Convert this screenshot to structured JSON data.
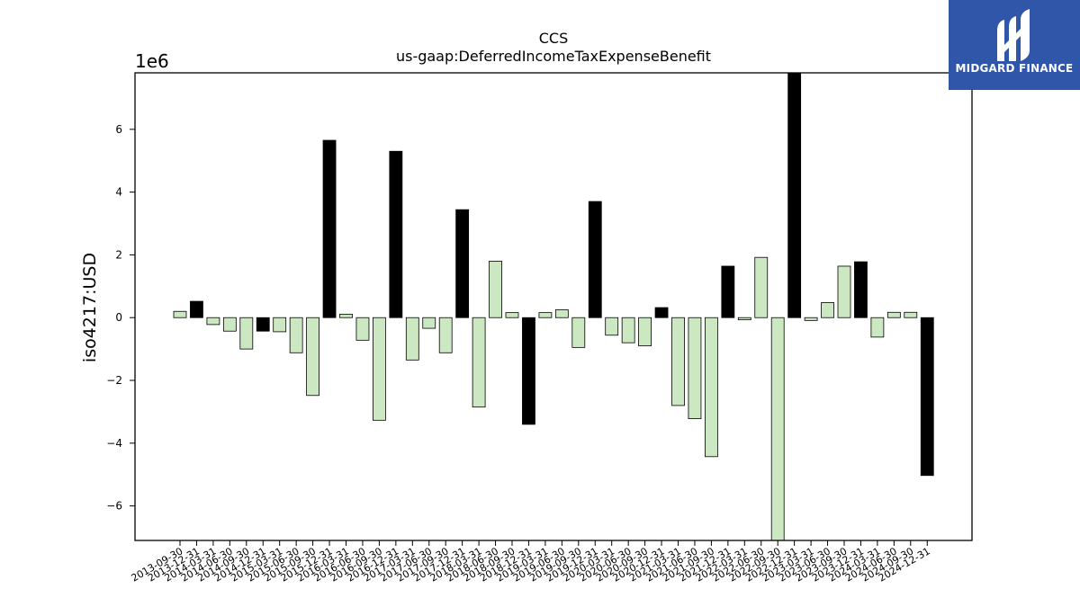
{
  "brand": {
    "name": "MIDGARD FINANCE",
    "logo_icon": "stylized-m-icon",
    "background": "#2f56a8"
  },
  "chart_data": {
    "type": "bar",
    "title": "CCS",
    "subtitle": "us-gaap:DeferredIncomeTaxExpenseBenefit",
    "ylabel": "iso4217:USD",
    "y_scale_label": "1e6",
    "ylim": [
      -7100000,
      7800000
    ],
    "yticks": [
      -6000000,
      -4000000,
      -2000000,
      0,
      2000000,
      4000000,
      6000000
    ],
    "ytick_labels": [
      "−6",
      "−4",
      "−2",
      "0",
      "2",
      "4",
      "6"
    ],
    "colors": {
      "quarter": "#cce8c2",
      "annual": "#000000",
      "edge": "#000000"
    },
    "categories": [
      "2013-09-30",
      "2013-12-31",
      "2014-03-31",
      "2014-06-30",
      "2014-09-30",
      "2014-12-31",
      "2015-03-31",
      "2015-06-30",
      "2015-09-30",
      "2015-12-31",
      "2016-03-31",
      "2016-06-30",
      "2016-09-30",
      "2016-12-31",
      "2017-03-31",
      "2017-06-30",
      "2017-09-30",
      "2017-12-31",
      "2018-03-31",
      "2018-06-30",
      "2018-09-30",
      "2018-12-31",
      "2019-03-31",
      "2019-06-30",
      "2019-09-30",
      "2019-12-31",
      "2020-03-31",
      "2020-06-30",
      "2020-09-30",
      "2020-12-31",
      "2021-03-31",
      "2021-06-30",
      "2021-09-30",
      "2021-12-31",
      "2022-03-31",
      "2022-06-30",
      "2022-09-30",
      "2022-12-31",
      "2023-03-31",
      "2023-06-30",
      "2023-09-30",
      "2023-12-31",
      "2024-03-31",
      "2024-06-30",
      "2024-09-30",
      "2024-12-31"
    ],
    "values": [
      200000,
      520000,
      -220000,
      -430000,
      -1000000,
      -430000,
      -450000,
      -1120000,
      -2480000,
      5650000,
      110000,
      -720000,
      -3270000,
      5300000,
      -1350000,
      -340000,
      -1120000,
      3440000,
      -2850000,
      1800000,
      160000,
      -3400000,
      160000,
      250000,
      -950000,
      3700000,
      -560000,
      -800000,
      -900000,
      320000,
      -2800000,
      -3220000,
      -4430000,
      1640000,
      -70000,
      1920000,
      -7100000,
      7800000,
      -90000,
      480000,
      1640000,
      1780000,
      -620000,
      170000,
      170000,
      -5030000
    ],
    "annual": [
      false,
      true,
      false,
      false,
      false,
      true,
      false,
      false,
      false,
      true,
      false,
      false,
      false,
      true,
      false,
      false,
      false,
      true,
      false,
      false,
      false,
      true,
      false,
      false,
      false,
      true,
      false,
      false,
      false,
      true,
      false,
      false,
      false,
      true,
      false,
      false,
      false,
      true,
      false,
      false,
      false,
      true,
      false,
      false,
      false,
      true
    ]
  }
}
